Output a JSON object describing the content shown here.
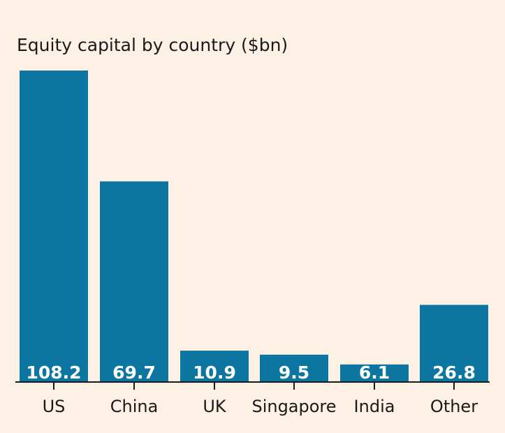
{
  "chart_data": {
    "type": "bar",
    "title": "Equity capital by country ($bn)",
    "xlabel": "",
    "ylabel": "",
    "categories": [
      "US",
      "China",
      "UK",
      "Singapore",
      "India",
      "Other"
    ],
    "values": [
      108.2,
      69.7,
      10.9,
      9.5,
      6.1,
      26.8
    ],
    "value_labels": [
      "108.2",
      "69.7",
      "10.9",
      "9.5",
      "6.1",
      "26.8"
    ],
    "ylim": [
      0,
      108.2
    ],
    "grid": false,
    "legend": "none",
    "colors": {
      "bar": "#0d76a0",
      "background": "#fdf1e5",
      "axis": "#1a1a1a",
      "text": "#1a1a1a",
      "value_text": "#ffffff"
    }
  }
}
